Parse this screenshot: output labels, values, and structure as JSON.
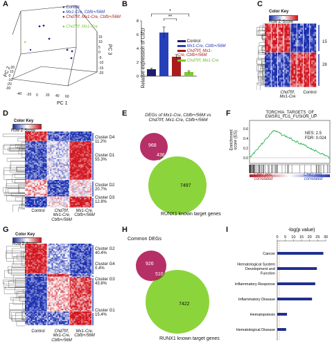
{
  "panels": [
    "A",
    "B",
    "C",
    "D",
    "E",
    "F",
    "G",
    "H",
    "I"
  ],
  "colors": {
    "control": "#2b2b8f",
    "mx1": "#2540b8",
    "chd7": "#a81c1c",
    "chd7mx1": "#7acb2a",
    "venn_red": "#b2245f",
    "venn_green": "#8cd43c",
    "bar": "#1f2f8f"
  },
  "panel_a": {
    "legend": [
      "Control",
      "Mx1-Cre, Cbfb+/56M",
      "Chd7f/f, Mx1-Cre, Cbfb+/56M",
      "Chd7f/f, Mx1-Cre"
    ],
    "axis_pc1": "PC 1",
    "axis_pc2": "PC 2",
    "axis_pc3": "PC 3",
    "pc1_ticks": [
      "-40",
      "-20",
      "0",
      "20",
      "40",
      "60"
    ],
    "pc2_ticks": [
      "-30",
      "-20",
      "-10",
      "0",
      "10",
      "20"
    ],
    "pc3_ticks": [
      "-20",
      "-15",
      "-10",
      "-5",
      "0",
      "5",
      "10",
      "15"
    ]
  },
  "chart_data": [
    {
      "type": "bar",
      "title": "B",
      "ylabel": "Relative expression of Csf1r",
      "categories": [
        "Control",
        "Mx1-Cre, Cbfb+/56M",
        "Chd7f/f, Mx1-Cre, Cbfb+/56M",
        "Chd7f/f, Mx1-Cre"
      ],
      "values": [
        1.0,
        6.3,
        2.8,
        0.6
      ],
      "errors": [
        0.15,
        0.8,
        0.3,
        0.15
      ],
      "ylim": [
        0,
        8
      ],
      "yticks": [
        "0",
        "2",
        "4",
        "6",
        "8"
      ],
      "significance": [
        "*",
        "**"
      ]
    },
    {
      "type": "bar",
      "title": "I",
      "xlabel": "-log(p value)",
      "xticks": [
        "0",
        "5",
        "10",
        "15",
        "20",
        "25",
        "30"
      ],
      "xlim": [
        0,
        30
      ],
      "categories": [
        "Cancer",
        "Hematological System Development and Function",
        "Inflammatory Response",
        "Inflammatory Disease",
        "Hematopoiesis",
        "Hematological Disease"
      ],
      "values": [
        28.5,
        24.5,
        23.5,
        21.5,
        6.0,
        5.5
      ]
    }
  ],
  "panel_c": {
    "key_title": "Color Key",
    "key_sub": "Row Z-Score",
    "ticks": [
      "-2",
      "0",
      "2"
    ],
    "cluster_top": "15",
    "cluster_bot": "28",
    "col1": "Chd7f/f,\nMx1-Cre",
    "col2": "Control"
  },
  "panel_d": {
    "key_title": "Color Key",
    "key_sub": "Row Z-Score",
    "clusters": [
      {
        "name": "Cluster D4",
        "pct": "11.2%"
      },
      {
        "name": "Cluster D1",
        "pct": "55.3%"
      },
      {
        "name": "Cluster D2",
        "pct": "20.7%"
      },
      {
        "name": "Cluster D3",
        "pct": "12.8%"
      }
    ],
    "cols": [
      "Control",
      "Chd7f/f,\nMx1-Cre,\nCbfb+/56M",
      "Mx1-Cre,\nCbfb+/56M"
    ]
  },
  "panel_e": {
    "title_line1": "DEGs of Mx1-Cre, Cbfb+/56M vs",
    "title_line2": "Chd7f/f, Mx1-Cre, Cbfb+/56M",
    "left": "968",
    "overlap": "436",
    "right": "7497",
    "caption": "RUNX1 known target genes"
  },
  "panel_f": {
    "title1": "TORCHIA_TARGETS_OF_",
    "title2": "EWSR1_FLI1_FUSION_UP",
    "ylabel": "Enrichment\nscore (ES)",
    "nes": "NES: 2.5",
    "fdr": "FDR: 0.024",
    "left_lbl": "Chd7 pos.\ncorrelated",
    "right_lbl": "Chd7 neg.\ncorrelated",
    "yticks": [
      "0.0",
      "0.2",
      "0.4",
      "0.6"
    ]
  },
  "panel_g": {
    "key_title": "Color Key",
    "key_sub": "Row Z-Score",
    "clusters": [
      {
        "name": "Cluster G2",
        "pct": "40.4%"
      },
      {
        "name": "Cluster G4",
        "pct": "0.4%"
      },
      {
        "name": "Cluster G3",
        "pct": "43.8%"
      },
      {
        "name": "Cluster G1",
        "pct": "15.4%"
      }
    ],
    "cols": [
      "Control",
      "Chd7f/f,\nMx1-Cre,\nCbfb+/56M",
      "Mx1-Cre,\nCbfb+/56M"
    ]
  },
  "panel_h": {
    "title": "Common DEGs",
    "left": "926",
    "overlap": "510",
    "right": "7422",
    "caption": "RUNX1 known target genes"
  }
}
